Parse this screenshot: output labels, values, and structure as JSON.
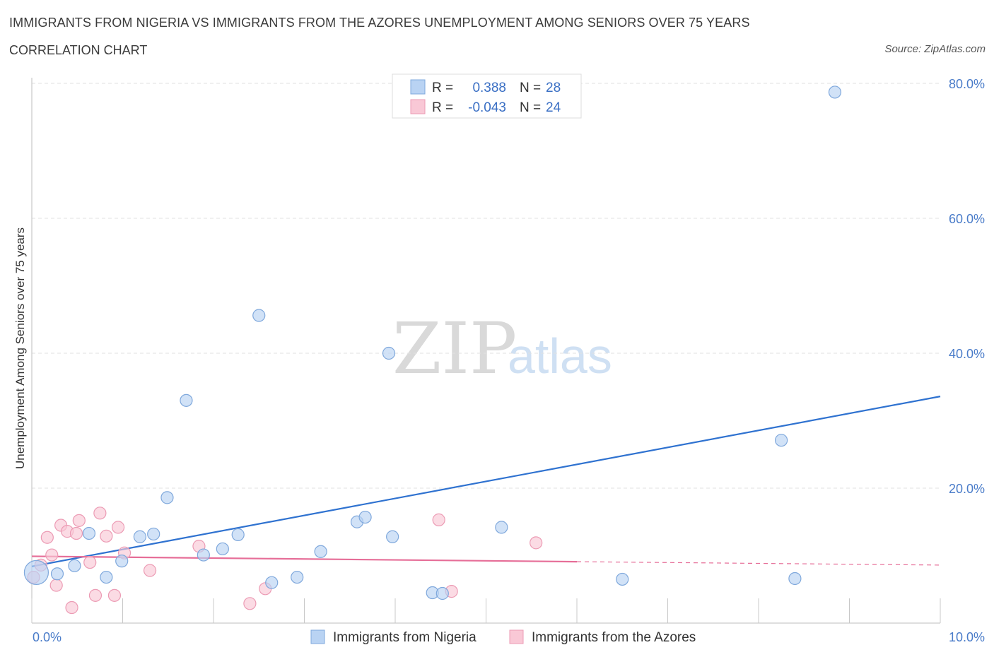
{
  "header": {
    "title": "IMMIGRANTS FROM NIGERIA VS IMMIGRANTS FROM THE AZORES UNEMPLOYMENT AMONG SENIORS OVER 75 YEARS",
    "subtitle": "CORRELATION CHART",
    "source": "Source: ZipAtlas.com"
  },
  "watermark": {
    "zip": "ZIP",
    "atlas": "atlas"
  },
  "legend": {
    "series": [
      {
        "r_label": "R =",
        "r_value": "0.388",
        "n_label": "N =",
        "n_value": "28"
      },
      {
        "r_label": "R =",
        "r_value": "-0.043",
        "n_label": "N =",
        "n_value": "24"
      }
    ]
  },
  "colors": {
    "nigeria_fill": "#b9d3f3",
    "nigeria_stroke": "#7fa8dc",
    "nigeria_line": "#2f72d0",
    "azores_fill": "#f9c8d6",
    "azores_stroke": "#ec9bb4",
    "azores_line": "#e66e98",
    "grid": "#e2e2e2",
    "tick_text": "#4a7cc9"
  },
  "chart_data": {
    "type": "scatter",
    "title": "IMMIGRANTS FROM NIGERIA VS IMMIGRANTS FROM THE AZORES UNEMPLOYMENT AMONG SENIORS OVER 75 YEARS",
    "xlabel": "",
    "ylabel": "Unemployment Among Seniors over 75 years",
    "xlim": [
      0,
      10
    ],
    "ylim": [
      0,
      80
    ],
    "x_tick_labels": [
      "0.0%",
      "10.0%"
    ],
    "y_ticks": [
      20,
      40,
      60,
      80
    ],
    "y_tick_labels": [
      "20.0%",
      "40.0%",
      "60.0%",
      "80.0%"
    ],
    "grid": true,
    "series": [
      {
        "name": "Immigrants from Nigeria",
        "r": 0.388,
        "n": 28,
        "points": [
          {
            "x": 0.05,
            "y": 7.5,
            "big": true
          },
          {
            "x": 0.28,
            "y": 7.3
          },
          {
            "x": 0.47,
            "y": 8.5
          },
          {
            "x": 0.63,
            "y": 13.3
          },
          {
            "x": 0.82,
            "y": 6.8
          },
          {
            "x": 0.99,
            "y": 9.2
          },
          {
            "x": 1.19,
            "y": 12.8
          },
          {
            "x": 1.34,
            "y": 13.2
          },
          {
            "x": 1.49,
            "y": 18.6
          },
          {
            "x": 1.7,
            "y": 33.0
          },
          {
            "x": 1.89,
            "y": 10.1
          },
          {
            "x": 2.1,
            "y": 11.0
          },
          {
            "x": 2.27,
            "y": 13.1
          },
          {
            "x": 2.5,
            "y": 45.6
          },
          {
            "x": 2.64,
            "y": 6.0
          },
          {
            "x": 2.92,
            "y": 6.8
          },
          {
            "x": 3.18,
            "y": 10.6
          },
          {
            "x": 3.58,
            "y": 15.0
          },
          {
            "x": 3.67,
            "y": 15.7
          },
          {
            "x": 3.93,
            "y": 40.0
          },
          {
            "x": 3.97,
            "y": 12.8
          },
          {
            "x": 4.41,
            "y": 4.5
          },
          {
            "x": 4.52,
            "y": 4.4
          },
          {
            "x": 5.17,
            "y": 14.2
          },
          {
            "x": 6.5,
            "y": 6.5
          },
          {
            "x": 8.25,
            "y": 27.1
          },
          {
            "x": 8.4,
            "y": 6.6
          },
          {
            "x": 8.84,
            "y": 78.7
          }
        ],
        "trend": {
          "x0": 0.0,
          "y0": 8.4,
          "x1": 10.0,
          "y1": 33.6
        }
      },
      {
        "name": "Immigrants from the Azores",
        "r": -0.043,
        "n": 24,
        "points": [
          {
            "x": 0.02,
            "y": 6.8
          },
          {
            "x": 0.1,
            "y": 8.6
          },
          {
            "x": 0.17,
            "y": 12.7
          },
          {
            "x": 0.22,
            "y": 10.1
          },
          {
            "x": 0.27,
            "y": 5.6
          },
          {
            "x": 0.32,
            "y": 14.5
          },
          {
            "x": 0.39,
            "y": 13.6
          },
          {
            "x": 0.44,
            "y": 2.3
          },
          {
            "x": 0.49,
            "y": 13.3
          },
          {
            "x": 0.52,
            "y": 15.2
          },
          {
            "x": 0.64,
            "y": 9.0
          },
          {
            "x": 0.7,
            "y": 4.1
          },
          {
            "x": 0.75,
            "y": 16.3
          },
          {
            "x": 0.82,
            "y": 12.9
          },
          {
            "x": 0.91,
            "y": 4.1
          },
          {
            "x": 0.95,
            "y": 14.2
          },
          {
            "x": 1.02,
            "y": 10.4
          },
          {
            "x": 1.3,
            "y": 7.8
          },
          {
            "x": 1.84,
            "y": 11.4
          },
          {
            "x": 2.4,
            "y": 2.9
          },
          {
            "x": 2.57,
            "y": 5.1
          },
          {
            "x": 4.48,
            "y": 15.3
          },
          {
            "x": 4.62,
            "y": 4.7
          },
          {
            "x": 5.55,
            "y": 11.9
          }
        ],
        "trend": {
          "x0": 0.0,
          "y0": 9.9,
          "x1": 6.0,
          "y1": 9.1
        },
        "trend_dashed": {
          "x0": 6.0,
          "y0": 9.1,
          "x1": 10.0,
          "y1": 8.6
        }
      }
    ]
  }
}
